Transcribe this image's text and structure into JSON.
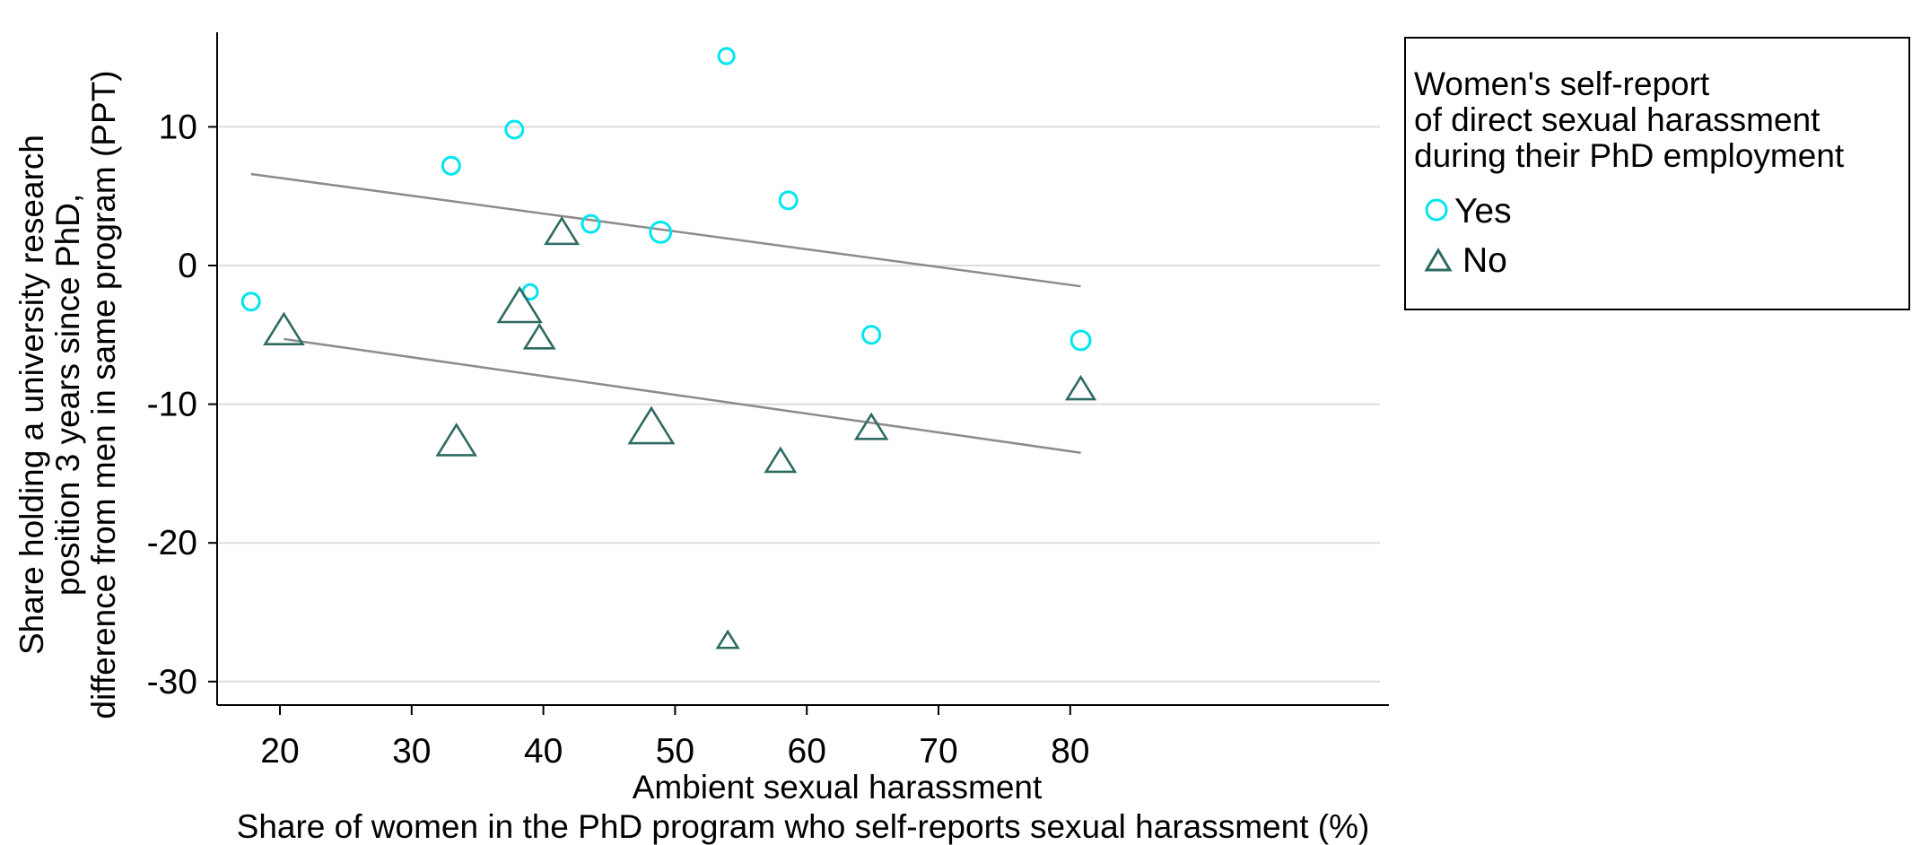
{
  "chart_data": {
    "type": "scatter",
    "xlabel": [
      "Ambient sexual harassment",
      "Share of women in the PhD program who self-reports sexual harassment (%)"
    ],
    "ylabel": [
      "Share holding a university research",
      "position 3 years since PhD,",
      "difference from men in same program (PPT)"
    ],
    "xlim": [
      16.5,
      82
    ],
    "ylim": [
      -31.5,
      17
    ],
    "xticks": [
      20,
      30,
      40,
      50,
      60,
      70,
      80
    ],
    "yticks": [
      10,
      0,
      -10,
      -20,
      -30
    ],
    "grid": "horizontal",
    "legend": {
      "placement": "right",
      "title": [
        "Women's self-report",
        "of direct sexual harassment",
        "during their PhD employment"
      ]
    },
    "colors": {
      "Yes": "#00e5ee",
      "No": "#2f6b62",
      "fit": "#8c8c8c",
      "grid": "#dcdcdc"
    },
    "series": [
      {
        "name": "Yes",
        "marker": "circle",
        "points": [
          {
            "x": 17.8,
            "y": -2.6,
            "w": 1.0
          },
          {
            "x": 33.0,
            "y": 7.2,
            "w": 1.0
          },
          {
            "x": 37.8,
            "y": 9.8,
            "w": 1.0
          },
          {
            "x": 39.0,
            "y": -1.9,
            "w": 0.85
          },
          {
            "x": 43.6,
            "y": 3.0,
            "w": 1.0
          },
          {
            "x": 48.9,
            "y": 2.4,
            "w": 1.2
          },
          {
            "x": 53.9,
            "y": 15.1,
            "w": 0.9
          },
          {
            "x": 58.6,
            "y": 4.7,
            "w": 1.0
          },
          {
            "x": 64.9,
            "y": -5.0,
            "w": 1.0
          },
          {
            "x": 80.8,
            "y": -5.4,
            "w": 1.1
          }
        ],
        "fit": {
          "x": [
            17.8,
            80.8
          ],
          "y": [
            6.6,
            -1.5
          ]
        }
      },
      {
        "name": "No",
        "marker": "triangle",
        "points": [
          {
            "x": 20.3,
            "y": -4.8,
            "w": 1.3
          },
          {
            "x": 33.4,
            "y": -12.8,
            "w": 1.3
          },
          {
            "x": 38.2,
            "y": -3.1,
            "w": 1.45
          },
          {
            "x": 39.7,
            "y": -5.3,
            "w": 1.0
          },
          {
            "x": 41.4,
            "y": 2.3,
            "w": 1.1
          },
          {
            "x": 48.2,
            "y": -11.8,
            "w": 1.5
          },
          {
            "x": 54.0,
            "y": -27.1,
            "w": 0.7
          },
          {
            "x": 58.0,
            "y": -14.2,
            "w": 1.0
          },
          {
            "x": 64.9,
            "y": -11.8,
            "w": 1.05
          },
          {
            "x": 80.8,
            "y": -9.0,
            "w": 0.95
          }
        ],
        "fit": {
          "x": [
            20.3,
            80.8
          ],
          "y": [
            -5.3,
            -13.5
          ]
        }
      }
    ]
  }
}
